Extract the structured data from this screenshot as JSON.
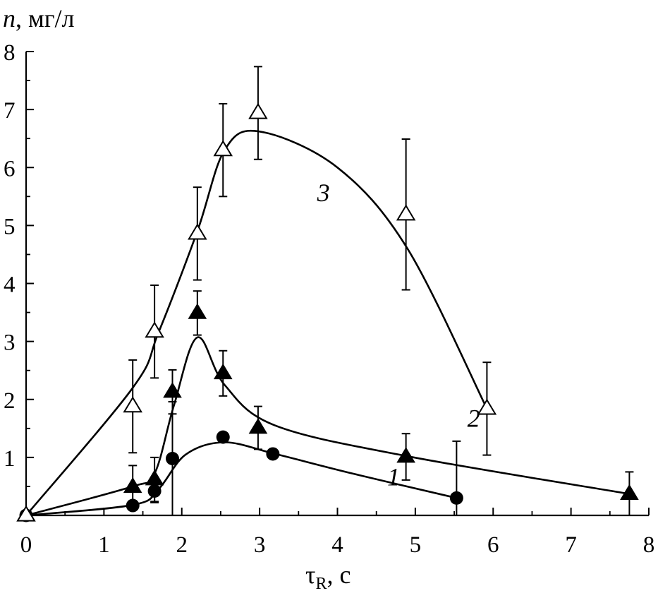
{
  "chart_data": {
    "type": "scatter",
    "title": "",
    "ylabel": {
      "var": "n",
      "unit": ", мг/л"
    },
    "xlabel": {
      "var": "τ",
      "sub": "R",
      "unit": ", с"
    },
    "xlim": [
      0,
      8
    ],
    "ylim": [
      0,
      8
    ],
    "xticks": [
      "0",
      "1",
      "2",
      "3",
      "4",
      "5",
      "6",
      "7",
      "8"
    ],
    "yticks": [
      "1",
      "2",
      "3",
      "4",
      "5",
      "6",
      "7",
      "8"
    ],
    "series": [
      {
        "name": "1",
        "marker": "filled-circle",
        "points": [
          {
            "x": 0,
            "y": 0
          },
          {
            "x": 1.37,
            "y": 0.17
          },
          {
            "x": 1.65,
            "y": 0.42,
            "err": 0.2
          },
          {
            "x": 1.88,
            "y": 0.98,
            "err": 0.98
          },
          {
            "x": 2.53,
            "y": 1.35
          },
          {
            "x": 3.17,
            "y": 1.06
          },
          {
            "x": 5.53,
            "y": 0.3,
            "err": 0.98
          }
        ],
        "curve": [
          [
            0,
            0
          ],
          [
            1.37,
            0.18
          ],
          [
            1.7,
            0.45
          ],
          [
            2.05,
            1.05
          ],
          [
            2.55,
            1.26
          ],
          [
            3.2,
            1.06
          ],
          [
            4.2,
            0.72
          ],
          [
            5.53,
            0.3
          ]
        ]
      },
      {
        "name": "2",
        "marker": "filled-triangle",
        "points": [
          {
            "x": 0,
            "y": 0
          },
          {
            "x": 1.37,
            "y": 0.49,
            "err": 0.37
          },
          {
            "x": 1.65,
            "y": 0.62,
            "err": 0.38
          },
          {
            "x": 1.88,
            "y": 2.13,
            "err": 0.38
          },
          {
            "x": 2.2,
            "y": 3.49,
            "err": 0.38
          },
          {
            "x": 2.53,
            "y": 2.45,
            "err": 0.39
          },
          {
            "x": 2.98,
            "y": 1.51,
            "err": 0.37
          },
          {
            "x": 4.88,
            "y": 1.01,
            "err": 0.4
          },
          {
            "x": 7.75,
            "y": 0.37,
            "err": 0.38
          }
        ],
        "curve": [
          [
            0,
            0
          ],
          [
            1.37,
            0.5
          ],
          [
            1.65,
            0.72
          ],
          [
            1.9,
            1.9
          ],
          [
            2.2,
            3.07
          ],
          [
            2.55,
            2.25
          ],
          [
            3.2,
            1.55
          ],
          [
            4.9,
            1.02
          ],
          [
            7.75,
            0.37
          ]
        ]
      },
      {
        "name": "3",
        "marker": "open-triangle",
        "points": [
          {
            "x": 0,
            "y": 0
          },
          {
            "x": 1.37,
            "y": 1.88,
            "err": 0.8
          },
          {
            "x": 1.65,
            "y": 3.17,
            "err": 0.8
          },
          {
            "x": 2.2,
            "y": 4.86,
            "err": 0.8
          },
          {
            "x": 2.53,
            "y": 6.3,
            "err": 0.8
          },
          {
            "x": 2.98,
            "y": 6.94,
            "err": 0.8
          },
          {
            "x": 4.88,
            "y": 5.19,
            "err": 1.3
          },
          {
            "x": 5.92,
            "y": 1.84,
            "err": 0.8
          }
        ],
        "curve": [
          [
            0,
            0
          ],
          [
            1.37,
            2.2
          ],
          [
            1.7,
            3.15
          ],
          [
            2.2,
            4.9
          ],
          [
            2.55,
            6.3
          ],
          [
            3.0,
            6.62
          ],
          [
            4.0,
            6.0
          ],
          [
            4.9,
            4.6
          ],
          [
            5.92,
            1.84
          ]
        ]
      }
    ],
    "curve_labels": [
      {
        "text": "1",
        "x": 4.72,
        "y": 0.52
      },
      {
        "text": "2",
        "x": 5.75,
        "y": 1.53
      },
      {
        "text": "3",
        "x": 3.82,
        "y": 5.42
      }
    ]
  }
}
